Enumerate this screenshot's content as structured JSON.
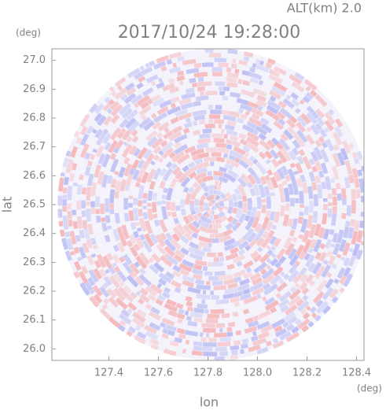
{
  "chart_data": {
    "type": "radar-ppi",
    "title": "2017/10/24 19:28:00",
    "annotation": "ALT(km)  2.0",
    "x_label": "lon",
    "y_label": "lat",
    "x_unit": "(deg)",
    "y_unit": "(deg)",
    "xlim": [
      127.17,
      128.43
    ],
    "xticks": [
      127.4,
      127.6,
      127.8,
      {
        "value": 128.0,
        "label": "128.0"
      },
      128.2,
      128.4
    ],
    "ylim": [
      25.96,
      27.04
    ],
    "yticks": [
      {
        "value": 26.0,
        "label": "26.0"
      },
      26.1,
      26.2,
      26.3,
      26.4,
      26.5,
      26.6,
      26.7,
      26.8,
      26.9,
      {
        "value": 27.0,
        "label": "27.0"
      }
    ],
    "colors": [
      "#f5b5b8",
      "#b9bcf3"
    ]
  }
}
